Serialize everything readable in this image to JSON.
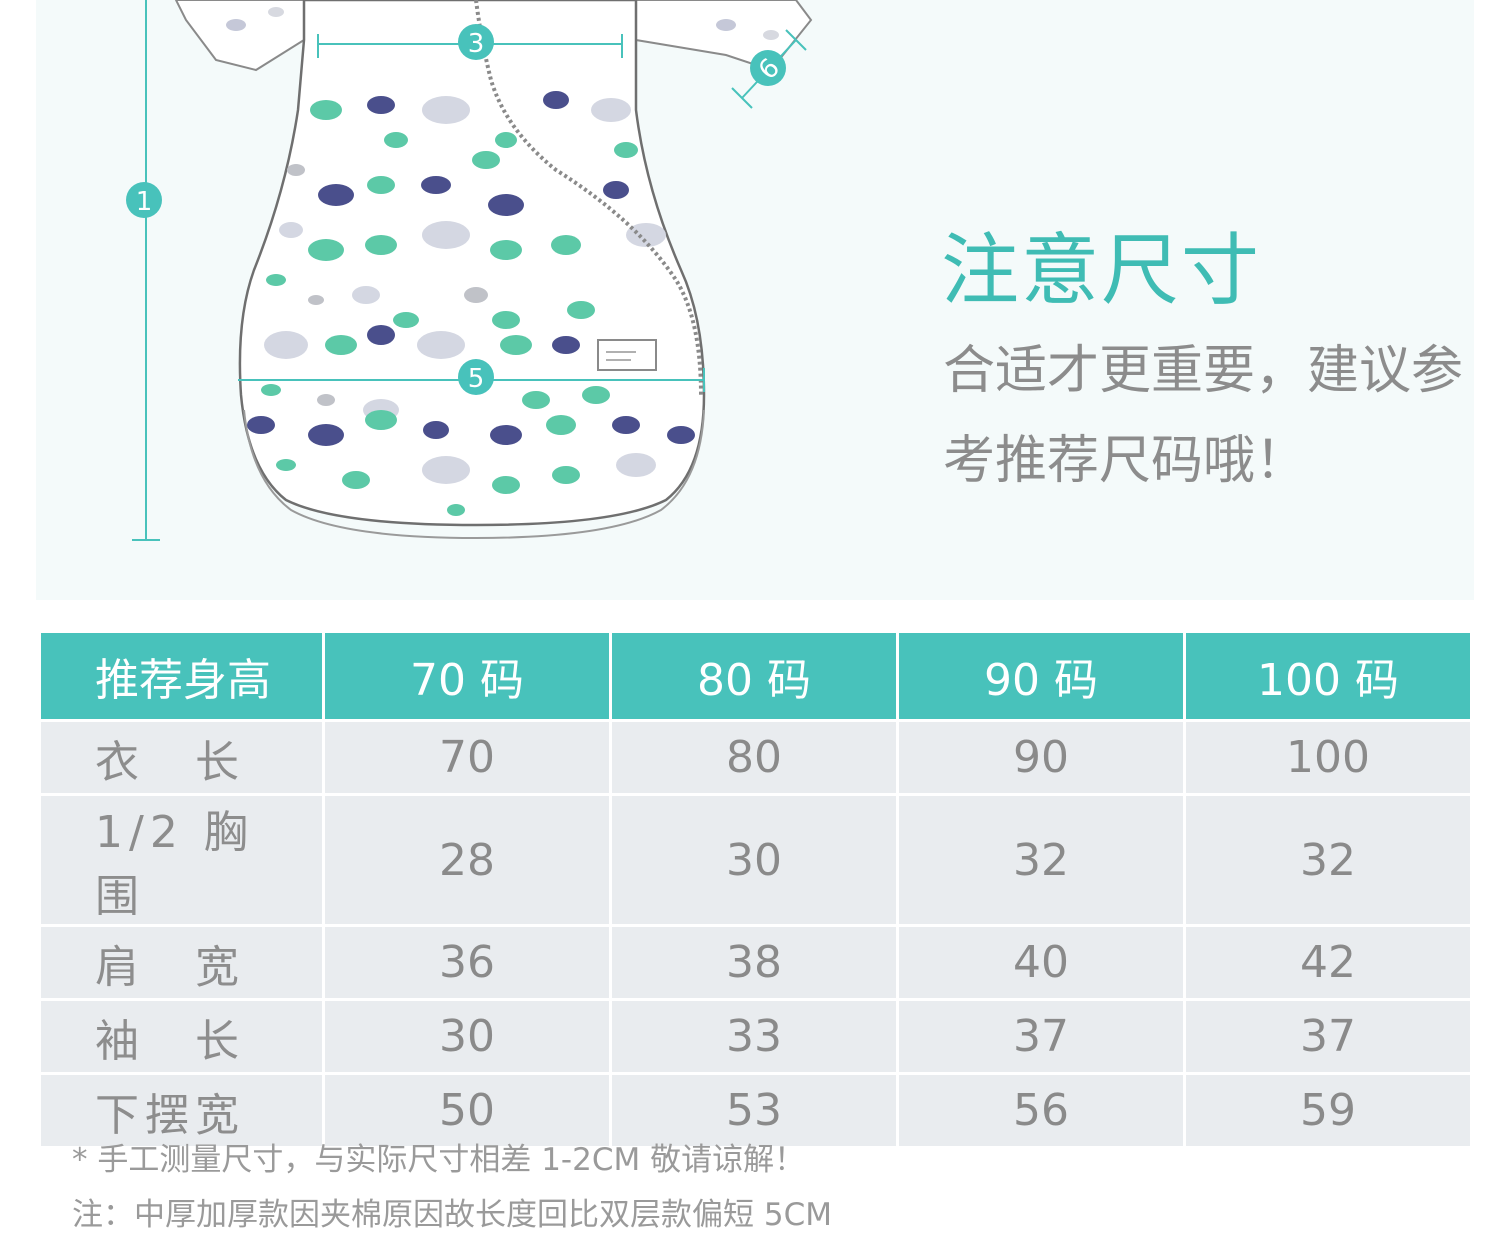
{
  "illustration": {
    "garment": "baby-sleeping-bag-whale-print",
    "markers": [
      "1",
      "3",
      "5",
      "6"
    ]
  },
  "notice": {
    "title": "注意尺寸",
    "text": "合适才更重要，建议参考推荐尺码哦！"
  },
  "table": {
    "headers": [
      "推荐身高",
      "70 码",
      "80 码",
      "90 码",
      "100 码"
    ],
    "rows": [
      {
        "label": "衣　长",
        "values": [
          "70",
          "80",
          "90",
          "100"
        ]
      },
      {
        "label": "1/2 胸 围",
        "values": [
          "28",
          "30",
          "32",
          "32"
        ]
      },
      {
        "label": "肩　宽",
        "values": [
          "36",
          "38",
          "40",
          "42"
        ]
      },
      {
        "label": "袖　长",
        "values": [
          "30",
          "33",
          "37",
          "37"
        ]
      },
      {
        "label": "下摆宽",
        "values": [
          "50",
          "53",
          "56",
          "59"
        ]
      }
    ]
  },
  "footnotes": [
    "* 手工测量尺寸，与实际尺寸相差 1-2CM 敬请谅解！",
    "注：中厚加厚款因夹棉原因故长度回比双层款偏短 5CM"
  ],
  "colors": {
    "accent": "#48c2bb",
    "title": "#3fbcb4",
    "whale_navy": "#4a4f8c",
    "whale_teal": "#5cc9a7",
    "cell_bg": "#e9ecef",
    "hero_bg": "#f4fafa"
  }
}
